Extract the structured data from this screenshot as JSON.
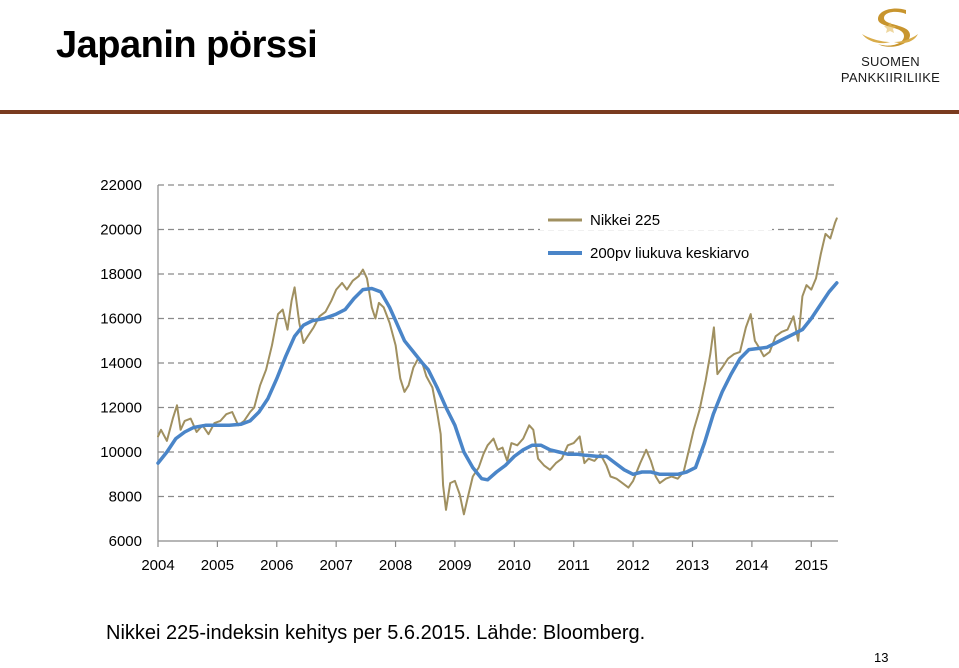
{
  "slide": {
    "title": "Japanin pörssi",
    "caption": "Nikkei 225-indeksin kehitys per 5.6.2015. Lähde: Bloomberg.",
    "page_number": "13",
    "accent_color": "#7a3b1f"
  },
  "logo": {
    "line1": "SUOMEN",
    "line2": "PANKKIIRILIIKE",
    "icon": "gold-s-logo-icon",
    "color": "#c8952e"
  },
  "chart_data": {
    "type": "line",
    "title": "",
    "xlabel": "",
    "ylabel": "",
    "xlim": [
      2004,
      2015.45
    ],
    "ylim": [
      6000,
      22000
    ],
    "x_ticks": [
      2004,
      2005,
      2006,
      2007,
      2008,
      2009,
      2010,
      2011,
      2012,
      2013,
      2014,
      2015
    ],
    "y_ticks": [
      6000,
      8000,
      10000,
      12000,
      14000,
      16000,
      18000,
      20000,
      22000
    ],
    "grid": "horizontal-dashed",
    "legend_position": "top-right",
    "series": [
      {
        "name": "Nikkei 225",
        "color": "#a09060",
        "points": [
          [
            2004.0,
            10700
          ],
          [
            2004.05,
            11000
          ],
          [
            2004.15,
            10500
          ],
          [
            2004.25,
            11500
          ],
          [
            2004.32,
            12100
          ],
          [
            2004.38,
            11000
          ],
          [
            2004.45,
            11400
          ],
          [
            2004.55,
            11500
          ],
          [
            2004.65,
            10900
          ],
          [
            2004.75,
            11200
          ],
          [
            2004.85,
            10800
          ],
          [
            2004.95,
            11300
          ],
          [
            2005.05,
            11400
          ],
          [
            2005.15,
            11700
          ],
          [
            2005.25,
            11800
          ],
          [
            2005.35,
            11200
          ],
          [
            2005.45,
            11400
          ],
          [
            2005.55,
            11800
          ],
          [
            2005.62,
            12000
          ],
          [
            2005.72,
            13000
          ],
          [
            2005.82,
            13700
          ],
          [
            2005.92,
            14800
          ],
          [
            2006.02,
            16200
          ],
          [
            2006.1,
            16400
          ],
          [
            2006.18,
            15500
          ],
          [
            2006.25,
            16800
          ],
          [
            2006.3,
            17400
          ],
          [
            2006.38,
            15800
          ],
          [
            2006.45,
            14900
          ],
          [
            2006.52,
            15200
          ],
          [
            2006.62,
            15600
          ],
          [
            2006.72,
            16100
          ],
          [
            2006.82,
            16300
          ],
          [
            2006.92,
            16800
          ],
          [
            2007.0,
            17300
          ],
          [
            2007.1,
            17600
          ],
          [
            2007.18,
            17300
          ],
          [
            2007.28,
            17700
          ],
          [
            2007.38,
            17900
          ],
          [
            2007.45,
            18200
          ],
          [
            2007.52,
            17800
          ],
          [
            2007.6,
            16500
          ],
          [
            2007.66,
            16000
          ],
          [
            2007.72,
            16700
          ],
          [
            2007.8,
            16500
          ],
          [
            2007.9,
            15800
          ],
          [
            2008.0,
            14800
          ],
          [
            2008.08,
            13300
          ],
          [
            2008.15,
            12700
          ],
          [
            2008.22,
            13000
          ],
          [
            2008.3,
            13800
          ],
          [
            2008.38,
            14200
          ],
          [
            2008.45,
            14000
          ],
          [
            2008.52,
            13400
          ],
          [
            2008.62,
            12900
          ],
          [
            2008.7,
            11800
          ],
          [
            2008.76,
            10800
          ],
          [
            2008.8,
            8500
          ],
          [
            2008.85,
            7400
          ],
          [
            2008.92,
            8600
          ],
          [
            2009.0,
            8700
          ],
          [
            2009.08,
            8100
          ],
          [
            2009.15,
            7200
          ],
          [
            2009.22,
            8000
          ],
          [
            2009.3,
            8900
          ],
          [
            2009.4,
            9300
          ],
          [
            2009.48,
            9900
          ],
          [
            2009.55,
            10300
          ],
          [
            2009.65,
            10600
          ],
          [
            2009.72,
            10100
          ],
          [
            2009.8,
            10200
          ],
          [
            2009.88,
            9600
          ],
          [
            2009.95,
            10400
          ],
          [
            2010.05,
            10300
          ],
          [
            2010.15,
            10600
          ],
          [
            2010.25,
            11200
          ],
          [
            2010.32,
            11000
          ],
          [
            2010.4,
            9700
          ],
          [
            2010.5,
            9400
          ],
          [
            2010.6,
            9200
          ],
          [
            2010.7,
            9500
          ],
          [
            2010.8,
            9700
          ],
          [
            2010.9,
            10300
          ],
          [
            2011.0,
            10400
          ],
          [
            2011.1,
            10700
          ],
          [
            2011.18,
            9500
          ],
          [
            2011.25,
            9700
          ],
          [
            2011.35,
            9600
          ],
          [
            2011.45,
            9900
          ],
          [
            2011.55,
            9400
          ],
          [
            2011.62,
            8900
          ],
          [
            2011.72,
            8800
          ],
          [
            2011.82,
            8600
          ],
          [
            2011.92,
            8400
          ],
          [
            2012.0,
            8700
          ],
          [
            2012.12,
            9500
          ],
          [
            2012.22,
            10100
          ],
          [
            2012.3,
            9600
          ],
          [
            2012.38,
            8900
          ],
          [
            2012.45,
            8600
          ],
          [
            2012.55,
            8800
          ],
          [
            2012.65,
            8900
          ],
          [
            2012.75,
            8800
          ],
          [
            2012.85,
            9100
          ],
          [
            2012.95,
            10200
          ],
          [
            2013.02,
            11000
          ],
          [
            2013.12,
            11900
          ],
          [
            2013.22,
            13200
          ],
          [
            2013.3,
            14400
          ],
          [
            2013.36,
            15600
          ],
          [
            2013.42,
            13500
          ],
          [
            2013.5,
            13800
          ],
          [
            2013.6,
            14200
          ],
          [
            2013.7,
            14400
          ],
          [
            2013.8,
            14500
          ],
          [
            2013.9,
            15600
          ],
          [
            2013.98,
            16200
          ],
          [
            2014.05,
            15000
          ],
          [
            2014.12,
            14700
          ],
          [
            2014.2,
            14300
          ],
          [
            2014.3,
            14500
          ],
          [
            2014.4,
            15200
          ],
          [
            2014.5,
            15400
          ],
          [
            2014.6,
            15500
          ],
          [
            2014.7,
            16100
          ],
          [
            2014.78,
            15000
          ],
          [
            2014.85,
            17000
          ],
          [
            2014.92,
            17500
          ],
          [
            2015.0,
            17300
          ],
          [
            2015.08,
            17800
          ],
          [
            2015.16,
            18900
          ],
          [
            2015.24,
            19800
          ],
          [
            2015.32,
            19600
          ],
          [
            2015.4,
            20300
          ],
          [
            2015.43,
            20500
          ]
        ]
      },
      {
        "name": "200pv liukuva keskiarvo",
        "color": "#4a85c8",
        "points": [
          [
            2004.0,
            9500
          ],
          [
            2004.15,
            10000
          ],
          [
            2004.3,
            10600
          ],
          [
            2004.45,
            10900
          ],
          [
            2004.6,
            11100
          ],
          [
            2004.8,
            11200
          ],
          [
            2005.0,
            11200
          ],
          [
            2005.2,
            11200
          ],
          [
            2005.4,
            11250
          ],
          [
            2005.55,
            11400
          ],
          [
            2005.7,
            11800
          ],
          [
            2005.85,
            12400
          ],
          [
            2006.0,
            13300
          ],
          [
            2006.15,
            14300
          ],
          [
            2006.3,
            15200
          ],
          [
            2006.45,
            15700
          ],
          [
            2006.6,
            15900
          ],
          [
            2006.8,
            16000
          ],
          [
            2007.0,
            16200
          ],
          [
            2007.15,
            16400
          ],
          [
            2007.3,
            16900
          ],
          [
            2007.45,
            17300
          ],
          [
            2007.6,
            17350
          ],
          [
            2007.75,
            17200
          ],
          [
            2007.9,
            16500
          ],
          [
            2008.0,
            15900
          ],
          [
            2008.15,
            15000
          ],
          [
            2008.3,
            14500
          ],
          [
            2008.45,
            14000
          ],
          [
            2008.55,
            13700
          ],
          [
            2008.7,
            12900
          ],
          [
            2008.85,
            12000
          ],
          [
            2009.0,
            11200
          ],
          [
            2009.15,
            10000
          ],
          [
            2009.3,
            9300
          ],
          [
            2009.45,
            8800
          ],
          [
            2009.55,
            8750
          ],
          [
            2009.7,
            9100
          ],
          [
            2009.85,
            9400
          ],
          [
            2010.0,
            9800
          ],
          [
            2010.15,
            10100
          ],
          [
            2010.3,
            10300
          ],
          [
            2010.45,
            10300
          ],
          [
            2010.6,
            10100
          ],
          [
            2010.75,
            10000
          ],
          [
            2010.9,
            9900
          ],
          [
            2011.05,
            9900
          ],
          [
            2011.2,
            9850
          ],
          [
            2011.4,
            9800
          ],
          [
            2011.55,
            9800
          ],
          [
            2011.7,
            9500
          ],
          [
            2011.85,
            9200
          ],
          [
            2012.0,
            9000
          ],
          [
            2012.15,
            9100
          ],
          [
            2012.3,
            9100
          ],
          [
            2012.45,
            9000
          ],
          [
            2012.6,
            9000
          ],
          [
            2012.75,
            9000
          ],
          [
            2012.9,
            9100
          ],
          [
            2013.05,
            9300
          ],
          [
            2013.2,
            10400
          ],
          [
            2013.35,
            11700
          ],
          [
            2013.5,
            12700
          ],
          [
            2013.65,
            13500
          ],
          [
            2013.8,
            14200
          ],
          [
            2013.95,
            14600
          ],
          [
            2014.1,
            14650
          ],
          [
            2014.25,
            14700
          ],
          [
            2014.4,
            14900
          ],
          [
            2014.55,
            15100
          ],
          [
            2014.7,
            15300
          ],
          [
            2014.85,
            15500
          ],
          [
            2015.0,
            16000
          ],
          [
            2015.15,
            16600
          ],
          [
            2015.3,
            17200
          ],
          [
            2015.43,
            17600
          ]
        ]
      }
    ]
  }
}
